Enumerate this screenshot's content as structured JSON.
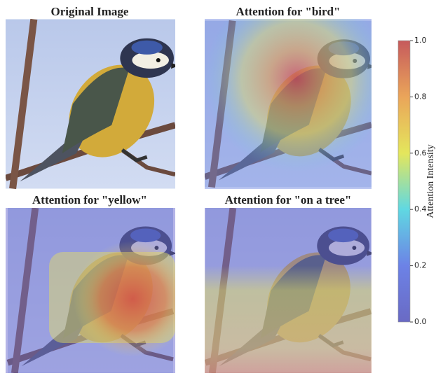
{
  "panels": [
    {
      "title": "Original Image"
    },
    {
      "title": "Attention for \"bird\""
    },
    {
      "title": "Attention for \"yellow\""
    },
    {
      "title": "Attention for \"on a tree\""
    }
  ],
  "colorbar": {
    "label": "Attention Intensity",
    "lim": [
      0,
      1
    ],
    "ticks": [
      {
        "value": 0,
        "label": "0.0"
      },
      0.2,
      0.4,
      0.6,
      0.8,
      {
        "value": 1,
        "label": "1.0"
      }
    ]
  }
}
